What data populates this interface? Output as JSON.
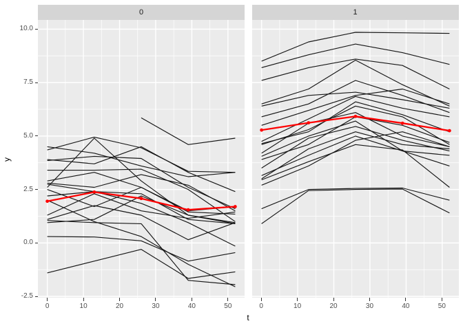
{
  "colors": {
    "background": "#FFFFFF",
    "panel_bg": "#EBEBEB",
    "strip_bg": "#D5D5D5",
    "grid": "#FFFFFF",
    "line": "#161616",
    "mean": "#FF0000",
    "tick_label": "#4D4D4D",
    "tick_mark": "#333333",
    "axis_title": "#000000",
    "strip_label": "#1A1A1A"
  },
  "chart_data": {
    "type": "line",
    "title": "",
    "xlabel": "t",
    "ylabel": "y",
    "legend": "none",
    "grid": "on",
    "x_domain": [
      -2.6,
      54.6
    ],
    "y_domain": [
      -2.56,
      10.43
    ],
    "x_ticks": {
      "values": [
        0,
        10,
        20,
        30,
        40,
        50
      ],
      "labels": [
        "0",
        "10",
        "20",
        "30",
        "40",
        "50"
      ],
      "minor": [
        5,
        15,
        25,
        35,
        45
      ]
    },
    "y_ticks": {
      "values": [
        10.0,
        7.5,
        5.0,
        2.5,
        0.0,
        -2.5
      ],
      "labels": [
        "10.0",
        "7.5",
        "5.0",
        "2.5",
        "0.0",
        "-2.5"
      ],
      "minor": [
        8.75,
        6.25,
        3.75,
        1.25,
        -1.25
      ]
    },
    "t_values": [
      0,
      13,
      26,
      39,
      52
    ],
    "facets": [
      {
        "label": "0",
        "mean_line": [
          1.95,
          2.38,
          2.08,
          1.55,
          1.7
        ],
        "lines": [
          [
            null,
            null,
            5.85,
            4.6,
            4.9
          ],
          [
            4.35,
            4.95,
            4.45,
            3.35,
            3.3
          ],
          [
            2.6,
            4.9,
            2.9,
            1.3,
            0.95
          ],
          [
            4.5,
            4.2,
            3.6,
            3.1,
            3.3
          ],
          [
            3.9,
            3.7,
            4.5,
            3.3,
            2.4
          ],
          [
            3.85,
            4.05,
            3.95,
            2.6,
            1.6
          ],
          [
            3.4,
            3.4,
            3.45,
            2.5,
            1.0
          ],
          [
            2.9,
            3.3,
            2.6,
            1.5,
            1.7
          ],
          [
            2.75,
            2.4,
            2.3,
            1.1,
            0.9
          ],
          [
            2.5,
            1.7,
            2.6,
            1.45,
            1.35
          ],
          [
            2.2,
            2.4,
            1.85,
            0.95,
            -0.15
          ],
          [
            0.3,
            0.28,
            0.1,
            -0.85,
            -0.45
          ],
          [
            -1.4,
            -0.85,
            -0.3,
            -1.66,
            -1.35
          ],
          [
            1.05,
            0.95,
            0.9,
            -1.75,
            -1.95
          ],
          [
            2.0,
            1.0,
            0.3,
            -1.0,
            -2.05
          ],
          [
            1.1,
            1.75,
            1.3,
            0.15,
            0.95
          ],
          [
            1.3,
            2.3,
            1.5,
            1.15,
            1.45
          ],
          [
            0.95,
            1.1,
            2.2,
            1.3,
            0.9
          ],
          [
            2.8,
            2.6,
            3.2,
            2.7,
            1.5
          ]
        ]
      },
      {
        "label": "1",
        "mean_line": [
          5.28,
          5.62,
          5.92,
          5.6,
          5.25
        ],
        "lines": [
          [
            8.5,
            9.4,
            9.85,
            9.83,
            9.8
          ],
          [
            8.2,
            8.8,
            9.3,
            8.9,
            8.35
          ],
          [
            7.6,
            8.2,
            8.6,
            8.3,
            7.2
          ],
          [
            6.5,
            7.2,
            8.55,
            7.4,
            6.4
          ],
          [
            6.4,
            6.9,
            7.05,
            6.7,
            6.3
          ],
          [
            5.5,
            6.2,
            6.9,
            7.2,
            6.5
          ],
          [
            4.75,
            5.8,
            6.85,
            6.3,
            5.9
          ],
          [
            4.6,
            5.3,
            6.4,
            5.9,
            4.6
          ],
          [
            4.2,
            5.6,
            6.1,
            5.0,
            4.5
          ],
          [
            3.9,
            4.6,
            5.9,
            5.5,
            4.7
          ],
          [
            3.5,
            4.9,
            5.45,
            4.8,
            4.3
          ],
          [
            3.0,
            4.4,
            5.2,
            4.6,
            4.4
          ],
          [
            2.7,
            3.6,
            4.8,
            5.2,
            4.5
          ],
          [
            1.6,
            2.5,
            2.55,
            2.57,
            2.0
          ],
          [
            0.9,
            2.45,
            2.5,
            2.52,
            1.4
          ],
          [
            3.15,
            4.1,
            5.0,
            4.3,
            3.6
          ],
          [
            2.95,
            3.8,
            4.6,
            4.35,
            2.6
          ],
          [
            4.05,
            5.0,
            5.7,
            4.3,
            4.1
          ],
          [
            4.65,
            5.2,
            6.6,
            6.0,
            5.2
          ],
          [
            5.9,
            6.5,
            7.6,
            6.9,
            6.1
          ]
        ]
      }
    ]
  }
}
